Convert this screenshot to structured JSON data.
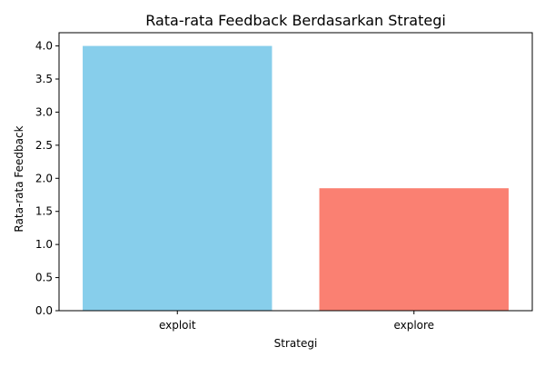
{
  "chart_data": {
    "type": "bar",
    "title": "Rata-rata Feedback Berdasarkan Strategi",
    "xlabel": "Strategi",
    "ylabel": "Rata-rata Feedback",
    "categories": [
      "exploit",
      "explore"
    ],
    "values": [
      4.0,
      1.85
    ],
    "colors": [
      "#87ceeb",
      "#fa8072"
    ],
    "ylim": [
      0,
      4.2
    ],
    "yticks": [
      "0.0",
      "0.5",
      "1.0",
      "1.5",
      "2.0",
      "2.5",
      "3.0",
      "3.5",
      "4.0"
    ],
    "grid": false,
    "legend": "none"
  }
}
